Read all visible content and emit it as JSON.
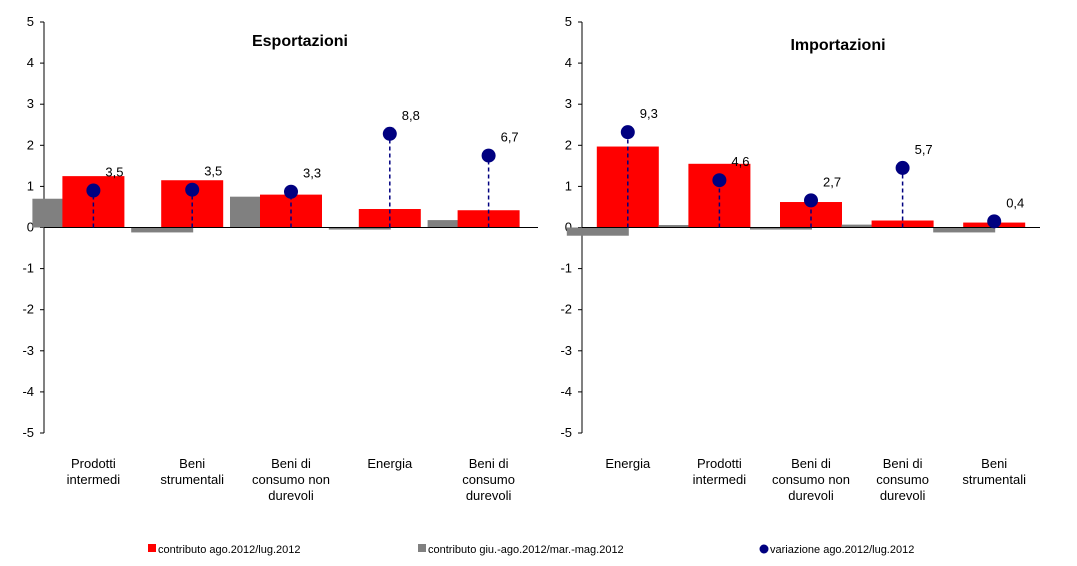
{
  "chart_data": [
    {
      "type": "bar",
      "title": "Esportazioni",
      "ylim": [
        -5,
        5
      ],
      "yticks": [
        5,
        4,
        3,
        2,
        1,
        0,
        -1,
        -2,
        -3,
        -4,
        -5
      ],
      "categories": [
        [
          "Prodotti",
          "intermedi"
        ],
        [
          "Beni",
          "strumentali"
        ],
        [
          "Beni di",
          "consumo non",
          "durevoli"
        ],
        [
          "Energia"
        ],
        [
          "Beni di",
          "consumo",
          "durevoli"
        ]
      ],
      "series": [
        {
          "name": "contributo ago.2012/lug.2012",
          "values": [
            1.25,
            1.15,
            0.8,
            0.45,
            0.42
          ]
        },
        {
          "name": "contributo giu.-ago.2012/mar.-mag.2012",
          "values": [
            0.7,
            -0.12,
            0.75,
            -0.05,
            0.18
          ]
        }
      ],
      "markers": {
        "name": "variazione ago.2012/lug.2012",
        "positions": [
          0.9,
          0.92,
          0.87,
          2.28,
          1.75
        ],
        "labels": [
          "3,5",
          "3,5",
          "3,3",
          "8,8",
          "6,7"
        ]
      }
    },
    {
      "type": "bar",
      "title": "Importazioni",
      "ylim": [
        -5,
        5
      ],
      "yticks": [
        5,
        4,
        3,
        2,
        1,
        0,
        -1,
        -2,
        -3,
        -4,
        -5
      ],
      "categories": [
        [
          "Energia"
        ],
        [
          "Prodotti",
          "intermedi"
        ],
        [
          "Beni di",
          "consumo non",
          "durevoli"
        ],
        [
          "Beni di",
          "consumo",
          "durevoli"
        ],
        [
          "Beni",
          "strumentali"
        ]
      ],
      "series": [
        {
          "name": "contributo ago.2012/lug.2012",
          "values": [
            1.97,
            1.55,
            0.62,
            0.17,
            0.12
          ]
        },
        {
          "name": "contributo giu.-ago.2012/mar.-mag.2012",
          "values": [
            -0.2,
            0.06,
            -0.05,
            0.07,
            -0.12
          ]
        }
      ],
      "markers": {
        "name": "variazione ago.2012/lug.2012",
        "positions": [
          2.32,
          1.15,
          0.66,
          1.45,
          0.15
        ],
        "labels": [
          "9,3",
          "4,6",
          "2,7",
          "5,7",
          "0,4"
        ]
      }
    }
  ],
  "legend": [
    {
      "label": "contributo ago.2012/lug.2012",
      "kind": "bar",
      "color": "#ff0000"
    },
    {
      "label": "contributo giu.-ago.2012/mar.-mag.2012",
      "kind": "bar",
      "color": "#808080"
    },
    {
      "label": "variazione ago.2012/lug.2012",
      "kind": "dot",
      "color": "#000080"
    }
  ],
  "colors": {
    "primary": "#ff0000",
    "secondary": "#808080",
    "marker": "#000080",
    "axis": "#000000"
  }
}
